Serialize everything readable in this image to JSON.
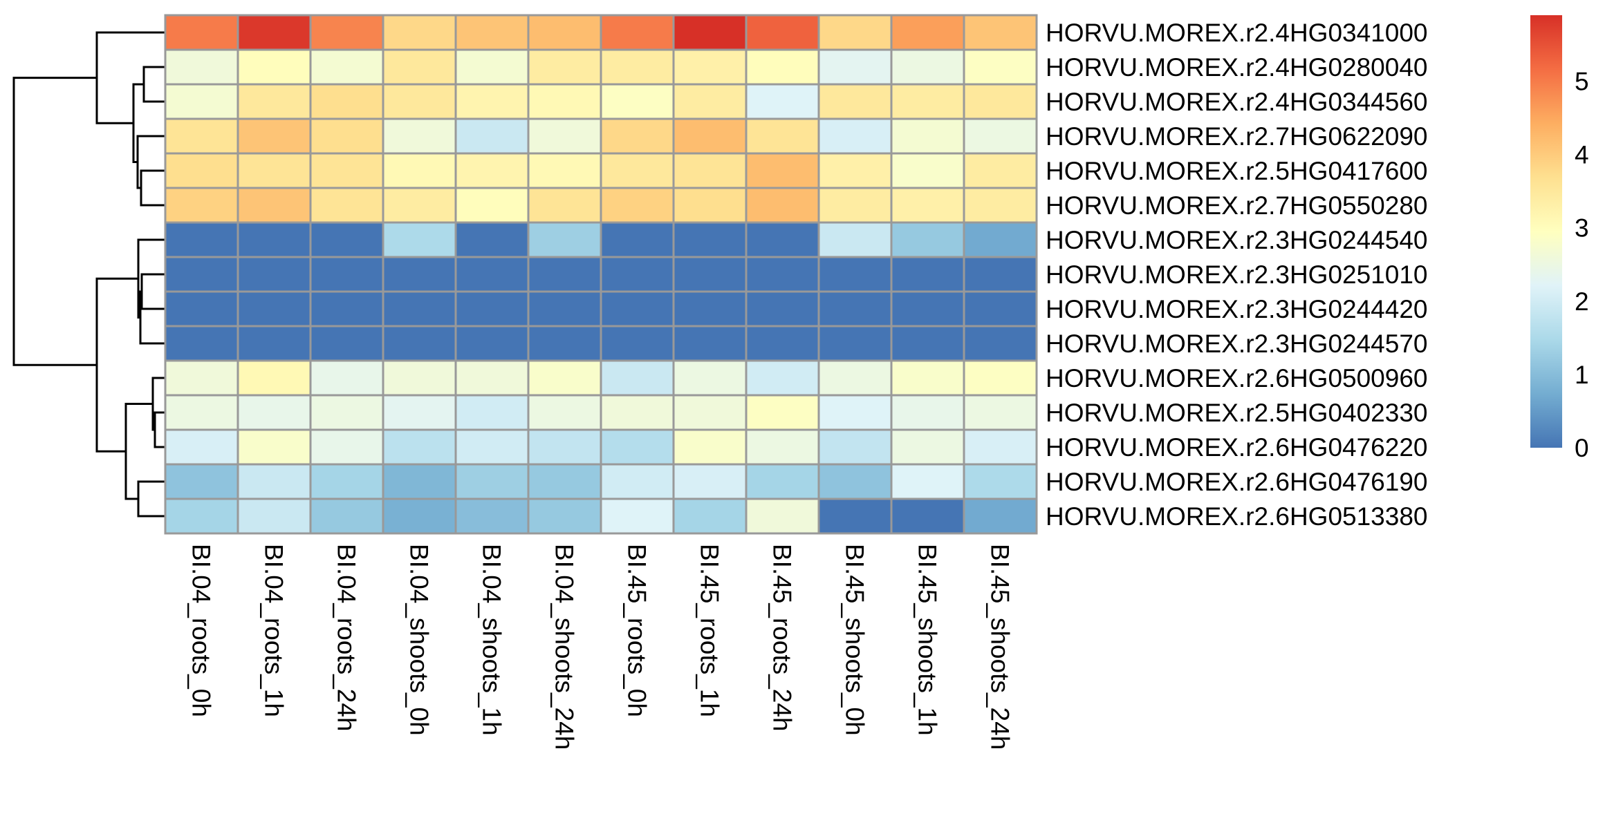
{
  "chart_data": {
    "type": "heatmap",
    "title": "",
    "xlabel": "",
    "ylabel": "",
    "columns": [
      "BI.04_roots_0h",
      "BI.04_roots_1h",
      "BI.04_roots_24h",
      "BI.04_shoots_0h",
      "BI.04_shoots_1h",
      "BI.04_shoots_24h",
      "BI.45_roots_0h",
      "BI.45_roots_1h",
      "BI.45_roots_24h",
      "BI.45_shoots_0h",
      "BI.45_shoots_1h",
      "BI.45_shoots_24h"
    ],
    "rows": [
      "HORVU.MOREX.r2.4HG0341000",
      "HORVU.MOREX.r2.4HG0280040",
      "HORVU.MOREX.r2.4HG0344560",
      "HORVU.MOREX.r2.7HG0622090",
      "HORVU.MOREX.r2.5HG0417600",
      "HORVU.MOREX.r2.7HG0550280",
      "HORVU.MOREX.r2.3HG0244540",
      "HORVU.MOREX.r2.3HG0251010",
      "HORVU.MOREX.r2.3HG0244420",
      "HORVU.MOREX.r2.3HG0244570",
      "HORVU.MOREX.r2.6HG0500960",
      "HORVU.MOREX.r2.5HG0402330",
      "HORVU.MOREX.r2.6HG0476220",
      "HORVU.MOREX.r2.6HG0476190",
      "HORVU.MOREX.r2.6HG0513380"
    ],
    "values": [
      [
        5.0,
        5.8,
        4.9,
        3.8,
        4.1,
        4.2,
        5.0,
        5.9,
        5.3,
        3.8,
        4.6,
        4.1
      ],
      [
        2.6,
        3.0,
        2.7,
        3.5,
        2.7,
        3.4,
        3.4,
        3.3,
        3.0,
        2.3,
        2.5,
        2.9
      ],
      [
        2.7,
        3.5,
        3.7,
        3.5,
        3.2,
        3.1,
        2.9,
        3.4,
        2.2,
        3.5,
        3.4,
        3.5
      ],
      [
        3.6,
        4.1,
        3.7,
        2.6,
        1.9,
        2.6,
        3.8,
        4.2,
        3.6,
        2.1,
        2.7,
        2.5
      ],
      [
        3.7,
        3.6,
        3.6,
        3.1,
        3.2,
        3.1,
        3.5,
        3.6,
        4.2,
        3.3,
        2.8,
        3.4
      ],
      [
        3.9,
        4.1,
        3.6,
        3.4,
        3.0,
        3.6,
        3.9,
        3.7,
        4.2,
        3.4,
        3.3,
        3.4
      ],
      [
        0.0,
        0.0,
        0.0,
        1.5,
        0.0,
        1.3,
        0.0,
        0.0,
        0.0,
        1.9,
        1.2,
        0.7
      ],
      [
        0.0,
        0.0,
        0.0,
        0.0,
        0.0,
        0.0,
        0.0,
        0.0,
        0.0,
        0.0,
        0.0,
        0.0
      ],
      [
        0.0,
        0.0,
        0.0,
        0.0,
        0.0,
        0.0,
        0.0,
        0.0,
        0.0,
        0.0,
        0.0,
        0.0
      ],
      [
        0.0,
        0.0,
        0.0,
        0.0,
        0.0,
        0.0,
        0.0,
        0.0,
        0.0,
        0.0,
        0.0,
        0.0
      ],
      [
        2.6,
        3.1,
        2.4,
        2.6,
        2.6,
        2.8,
        1.9,
        2.5,
        2.0,
        2.5,
        2.8,
        2.9
      ],
      [
        2.5,
        2.4,
        2.5,
        2.3,
        2.0,
        2.5,
        2.6,
        2.6,
        2.9,
        2.2,
        2.4,
        2.5
      ],
      [
        2.1,
        2.8,
        2.4,
        1.7,
        2.0,
        1.8,
        1.6,
        2.8,
        2.5,
        1.8,
        2.5,
        2.1
      ],
      [
        1.1,
        1.9,
        1.4,
        0.9,
        1.3,
        1.2,
        2.0,
        2.1,
        1.4,
        1.1,
        2.2,
        1.5
      ],
      [
        1.4,
        1.9,
        1.2,
        0.8,
        1.0,
        1.2,
        2.2,
        1.4,
        2.6,
        0.0,
        0.0,
        0.7
      ]
    ],
    "legend": {
      "placement": "right",
      "min": 0,
      "max": 5.9,
      "ticks": [
        0,
        1,
        2,
        3,
        4,
        5
      ],
      "colors": [
        "#4575b4",
        "#74add1",
        "#abd9e9",
        "#e0f3f8",
        "#ffffbf",
        "#fee090",
        "#fdae61",
        "#f46d43",
        "#d73027"
      ]
    },
    "cell_border_color": "#999999",
    "row_dendrogram": true,
    "column_dendrogram": false
  }
}
